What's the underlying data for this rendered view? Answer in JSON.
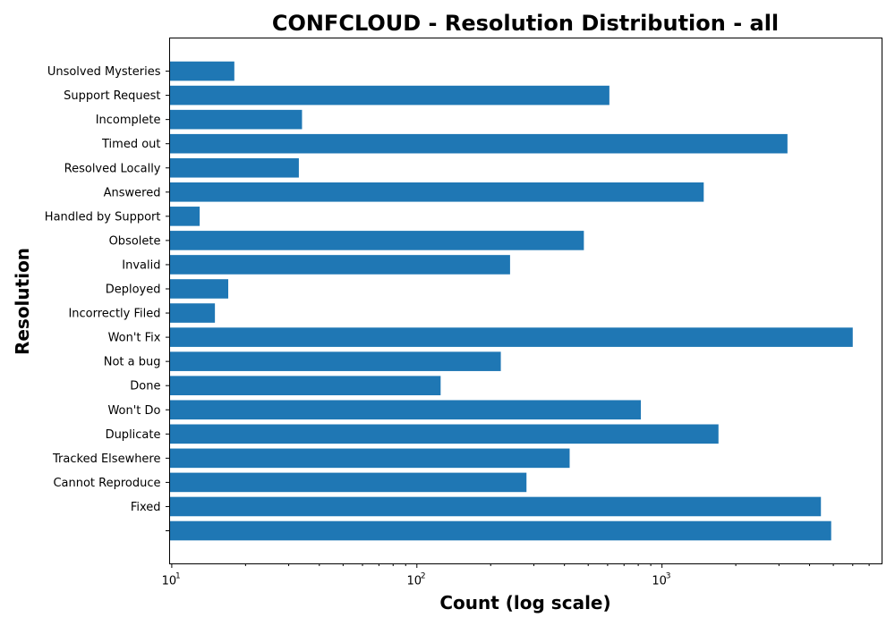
{
  "chart_data": {
    "type": "bar",
    "orientation": "horizontal",
    "title": "CONFCLOUD - Resolution Distribution - all",
    "xlabel": "Count (log scale)",
    "ylabel": "Resolution",
    "xscale": "log",
    "xlim": [
      9.8,
      7900
    ],
    "bar_color": "#1f77b4",
    "grid": false,
    "x_ticks": [
      {
        "base": "10",
        "exp": "1",
        "value": 10
      },
      {
        "base": "10",
        "exp": "2",
        "value": 100
      },
      {
        "base": "10",
        "exp": "3",
        "value": 1000
      }
    ],
    "categories": [
      "",
      "Fixed",
      "Cannot Reproduce",
      "Tracked Elsewhere",
      "Duplicate",
      "Won't Do",
      "Done",
      "Not a bug",
      "Won't Fix",
      "Incorrectly Filed",
      "Deployed",
      "Invalid",
      "Obsolete",
      "Handled by Support",
      "Answered",
      "Resolved Locally",
      "Timed out",
      "Incomplete",
      "Support Request",
      "Unsolved Mysteries"
    ],
    "values": [
      4900,
      4450,
      280,
      420,
      1700,
      820,
      125,
      220,
      6000,
      15,
      17,
      240,
      480,
      13,
      1480,
      33,
      3250,
      34,
      610,
      18
    ]
  }
}
